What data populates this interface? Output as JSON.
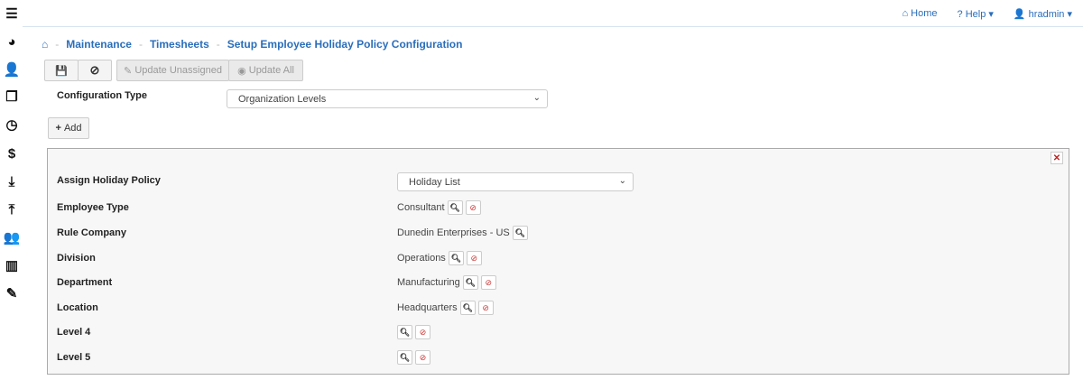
{
  "sidebar": {
    "items": [
      {
        "icon": "menu-icon",
        "glyph": "☰"
      },
      {
        "icon": "dashboard-icon",
        "glyph": "◕"
      },
      {
        "icon": "user-icon",
        "glyph": "👤"
      },
      {
        "icon": "files-icon",
        "glyph": "❐"
      },
      {
        "icon": "clock-icon",
        "glyph": "◷"
      },
      {
        "icon": "dollar-icon",
        "glyph": "$"
      },
      {
        "icon": "download-icon",
        "glyph": "⤓"
      },
      {
        "icon": "upload-icon",
        "glyph": "⤒"
      },
      {
        "icon": "users-icon",
        "glyph": "👥"
      },
      {
        "icon": "bar-chart-icon",
        "glyph": "▥"
      },
      {
        "icon": "edit-icon",
        "glyph": "✎"
      }
    ]
  },
  "topnav": {
    "home": "Home",
    "help": "Help",
    "user": "hradmin"
  },
  "breadcrumb": {
    "items": [
      "Maintenance",
      "Timesheets",
      "Setup Employee Holiday Policy Configuration"
    ]
  },
  "toolbar": {
    "update_unassigned": "Update Unassigned",
    "update_all": "Update All"
  },
  "config": {
    "label": "Configuration Type",
    "value": "Organization Levels"
  },
  "add_label": "Add",
  "panel": {
    "policy_label": "Assign Holiday Policy",
    "policy_value": "Holiday List",
    "rows": [
      {
        "label": "Employee Type",
        "value": "Consultant",
        "clear": true
      },
      {
        "label": "Rule Company",
        "value": "Dunedin Enterprises - US",
        "clear": false
      },
      {
        "label": "Division",
        "value": "Operations",
        "clear": true
      },
      {
        "label": "Department",
        "value": "Manufacturing",
        "clear": true
      },
      {
        "label": "Location",
        "value": "Headquarters",
        "clear": true
      },
      {
        "label": "Level 4",
        "value": "",
        "clear": true
      },
      {
        "label": "Level 5",
        "value": "",
        "clear": true
      }
    ]
  },
  "colors": {
    "link": "#2a6ebb",
    "clear": "#cc3333"
  }
}
